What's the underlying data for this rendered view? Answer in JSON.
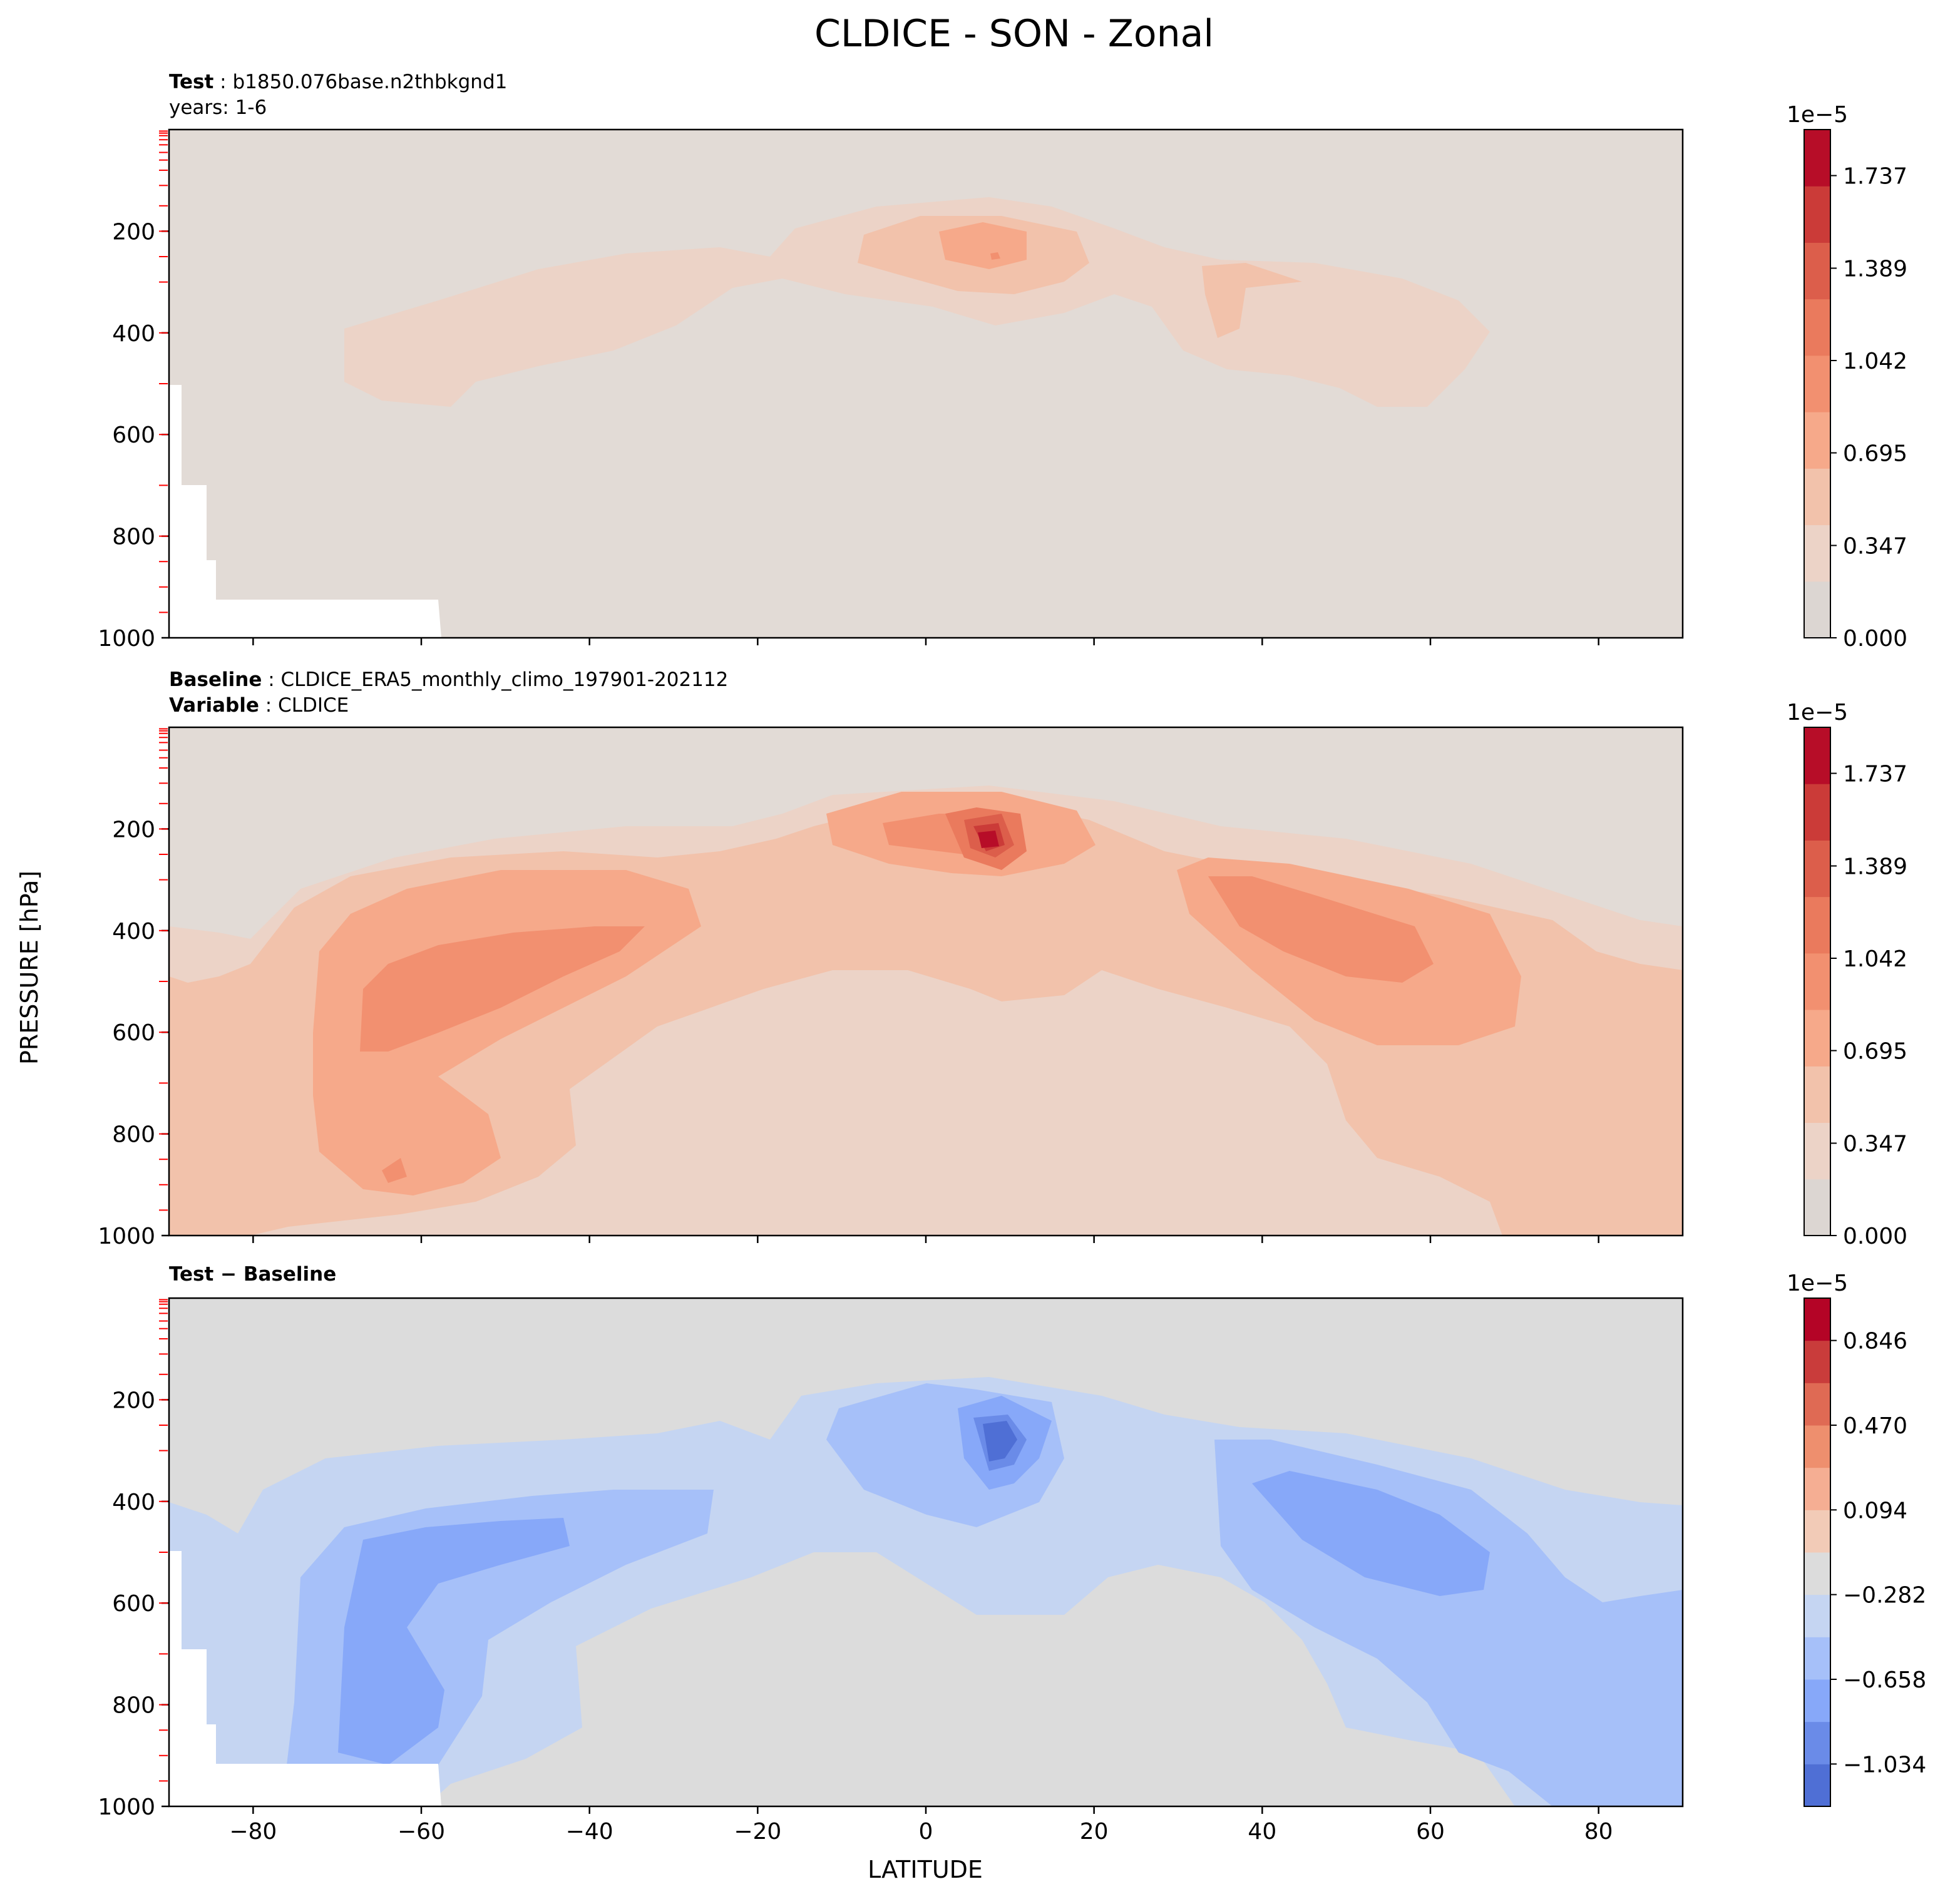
{
  "figure": {
    "title": "CLDICE - SON - Zonal",
    "ylabel": "PRESSURE [hPa]",
    "xlabel": "LATITUDE"
  },
  "panels": [
    {
      "meta_lines": [
        {
          "bold": "Test",
          "text": "b1850.076base.n2thbkgnd1"
        },
        {
          "bold": "",
          "text": "years: 1-6"
        }
      ],
      "colorbar": {
        "multiplier": "1e−5",
        "ticks": [
          "0.000",
          "0.347",
          "0.695",
          "1.042",
          "1.389",
          "1.737"
        ]
      }
    },
    {
      "meta_lines": [
        {
          "bold": "Baseline",
          "text": "CLDICE_ERA5_monthly_climo_197901-202112"
        },
        {
          "bold": "Variable",
          "text": "CLDICE"
        }
      ],
      "colorbar": {
        "multiplier": "1e−5",
        "ticks": [
          "0.000",
          "0.347",
          "0.695",
          "1.042",
          "1.389",
          "1.737"
        ]
      }
    },
    {
      "meta_lines": [
        {
          "bold": "Test − Baseline",
          "text": ""
        }
      ],
      "colorbar": {
        "multiplier": "1e−5",
        "ticks": [
          "−1.034",
          "−0.658",
          "−0.282",
          "0.094",
          "0.470",
          "0.846"
        ]
      }
    }
  ],
  "chart_data": [
    {
      "type": "heatmap",
      "subtype": "filled-contour",
      "title": "Test",
      "xlabel": "",
      "ylabel": "PRESSURE [hPa]",
      "xlim": [
        -90,
        90
      ],
      "ylim": [
        1000,
        0
      ],
      "yaxis_inverted": true,
      "x_ticks": [
        -80,
        -60,
        -40,
        -20,
        0,
        20,
        40,
        60,
        80
      ],
      "y_ticks": [
        200,
        400,
        600,
        800,
        1000
      ],
      "colorbar": {
        "range": [
          0,
          1.91e-05
        ],
        "levels": 11,
        "colormap": "coolwarm",
        "tick_labels": [
          "0.000",
          "0.347",
          "0.695",
          "1.042",
          "1.389",
          "1.737"
        ],
        "multiplier": "1e-5"
      },
      "features": [
        {
          "lat": 8,
          "p": 250,
          "value": 0.85,
          "unit": "1e-5"
        },
        {
          "lat": -45,
          "p": 430,
          "value": 0.25,
          "unit": "1e-5"
        },
        {
          "lat": 45,
          "p": 380,
          "value": 0.3,
          "unit": "1e-5"
        }
      ],
      "missing_region": {
        "lat_max": -58,
        "p_min": 500
      }
    },
    {
      "type": "heatmap",
      "subtype": "filled-contour",
      "title": "Baseline",
      "xlabel": "",
      "ylabel": "PRESSURE [hPa]",
      "xlim": [
        -90,
        90
      ],
      "ylim": [
        1000,
        0
      ],
      "yaxis_inverted": true,
      "x_ticks": [
        -80,
        -60,
        -40,
        -20,
        0,
        20,
        40,
        60,
        80
      ],
      "y_ticks": [
        200,
        400,
        600,
        800,
        1000
      ],
      "colorbar": {
        "range": [
          0,
          1.91e-05
        ],
        "levels": 11,
        "colormap": "coolwarm",
        "tick_labels": [
          "0.000",
          "0.347",
          "0.695",
          "1.042",
          "1.389",
          "1.737"
        ],
        "multiplier": "1e-5"
      },
      "features": [
        {
          "lat": 8,
          "p": 240,
          "value": 1.85,
          "unit": "1e-5"
        },
        {
          "lat": -60,
          "p": 550,
          "value": 0.75,
          "unit": "1e-5"
        },
        {
          "lat": 50,
          "p": 450,
          "value": 0.75,
          "unit": "1e-5"
        }
      ]
    },
    {
      "type": "heatmap",
      "subtype": "filled-contour",
      "title": "Test − Baseline",
      "xlabel": "LATITUDE",
      "ylabel": "PRESSURE [hPa]",
      "xlim": [
        -90,
        90
      ],
      "ylim": [
        1000,
        0
      ],
      "yaxis_inverted": true,
      "x_ticks": [
        -80,
        -60,
        -40,
        -20,
        0,
        20,
        40,
        60,
        80
      ],
      "y_ticks": [
        200,
        400,
        600,
        800,
        1000
      ],
      "colorbar": {
        "range": [
          -1.222e-05,
          1.034e-05
        ],
        "levels": 12,
        "colormap": "coolwarm",
        "tick_labels": [
          "−1.034",
          "−0.658",
          "−0.282",
          "0.094",
          "0.470",
          "0.846"
        ],
        "multiplier": "1e-5"
      },
      "features": [
        {
          "lat": 8,
          "p": 250,
          "value": -1.0,
          "unit": "1e-5"
        },
        {
          "lat": -60,
          "p": 650,
          "value": -0.6,
          "unit": "1e-5"
        },
        {
          "lat": 52,
          "p": 460,
          "value": -0.6,
          "unit": "1e-5"
        }
      ],
      "missing_region": {
        "lat_max": -58,
        "p_min": 500
      }
    }
  ]
}
